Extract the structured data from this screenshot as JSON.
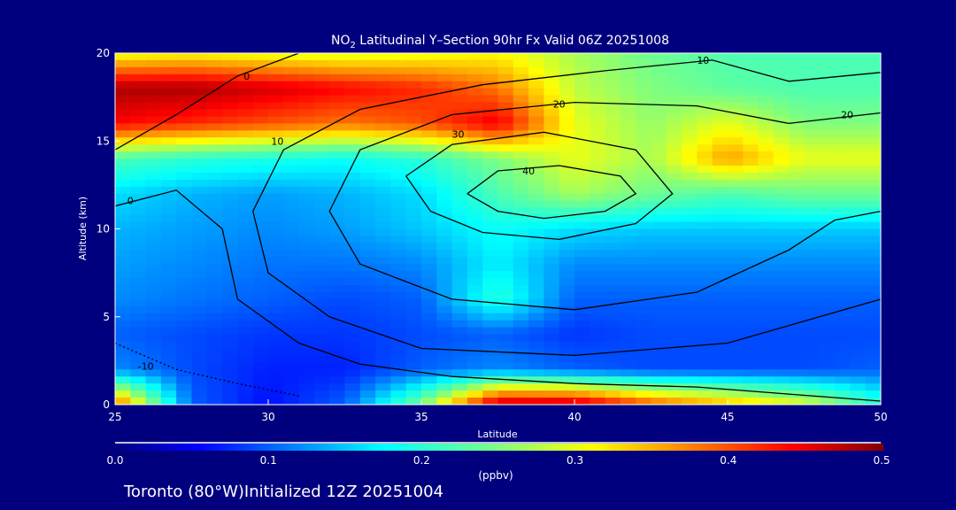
{
  "chart_data": {
    "type": "heatmap",
    "title_main": "NO",
    "title_sub": "2",
    "title_rest": " Latitudinal Y–Section 90hr  Fx Valid 06Z 20251008",
    "xlabel": "Latitude",
    "ylabel": "Altitude (km)",
    "xlim": [
      25,
      50
    ],
    "ylim": [
      0,
      20
    ],
    "xticks": [
      "25",
      "30",
      "35",
      "40",
      "45",
      "50"
    ],
    "yticks": [
      "0",
      "5",
      "10",
      "15",
      "20"
    ],
    "grid_lat": [
      25,
      27.5,
      30,
      32.5,
      35,
      37.5,
      40,
      42.5,
      45,
      47.5,
      50
    ],
    "grid_alt": [
      20,
      18,
      16,
      14,
      12,
      10,
      8,
      6,
      4,
      2,
      0
    ],
    "values": [
      [
        0.3,
        0.31,
        0.3,
        0.29,
        0.3,
        0.31,
        0.27,
        0.24,
        0.22,
        0.22,
        0.22
      ],
      [
        0.48,
        0.48,
        0.46,
        0.44,
        0.42,
        0.38,
        0.28,
        0.25,
        0.23,
        0.22,
        0.22
      ],
      [
        0.44,
        0.42,
        0.4,
        0.38,
        0.4,
        0.45,
        0.3,
        0.26,
        0.3,
        0.25,
        0.25
      ],
      [
        0.22,
        0.2,
        0.19,
        0.18,
        0.2,
        0.25,
        0.3,
        0.27,
        0.36,
        0.3,
        0.3
      ],
      [
        0.16,
        0.14,
        0.13,
        0.14,
        0.16,
        0.22,
        0.27,
        0.24,
        0.22,
        0.24,
        0.24
      ],
      [
        0.14,
        0.13,
        0.12,
        0.13,
        0.15,
        0.18,
        0.16,
        0.15,
        0.15,
        0.15,
        0.15
      ],
      [
        0.13,
        0.12,
        0.11,
        0.11,
        0.12,
        0.17,
        0.12,
        0.12,
        0.12,
        0.12,
        0.12
      ],
      [
        0.12,
        0.11,
        0.1,
        0.09,
        0.1,
        0.2,
        0.1,
        0.1,
        0.1,
        0.1,
        0.1
      ],
      [
        0.1,
        0.09,
        0.08,
        0.08,
        0.09,
        0.1,
        0.08,
        0.09,
        0.09,
        0.09,
        0.09
      ],
      [
        0.12,
        0.09,
        0.07,
        0.07,
        0.1,
        0.12,
        0.1,
        0.09,
        0.09,
        0.09,
        0.1
      ],
      [
        0.4,
        0.1,
        0.06,
        0.1,
        0.25,
        0.48,
        0.48,
        0.4,
        0.35,
        0.3,
        0.2
      ]
    ],
    "contours": [
      {
        "level": "40",
        "label_at": [
          38.5,
          13.3
        ],
        "points": [
          [
            36.5,
            12
          ],
          [
            37.5,
            13.3
          ],
          [
            39.5,
            13.6
          ],
          [
            41.5,
            13
          ],
          [
            42,
            12
          ],
          [
            41,
            11
          ],
          [
            39,
            10.6
          ],
          [
            37.5,
            11
          ],
          [
            36.5,
            12
          ]
        ]
      },
      {
        "level": "30",
        "label_at": [
          36.2,
          15.4
        ],
        "points": [
          [
            34.5,
            13
          ],
          [
            36,
            14.8
          ],
          [
            39,
            15.5
          ],
          [
            42,
            14.5
          ],
          [
            43.2,
            12
          ],
          [
            42,
            10.3
          ],
          [
            39.5,
            9.4
          ],
          [
            37,
            9.8
          ],
          [
            35.3,
            11
          ],
          [
            34.5,
            13
          ]
        ]
      },
      {
        "level": "20",
        "label_at": [
          39.5,
          17.1
        ],
        "points": [
          [
            50,
            16.6
          ],
          [
            47,
            16
          ],
          [
            44,
            17
          ],
          [
            40,
            17.2
          ],
          [
            36,
            16.5
          ],
          [
            33,
            14.5
          ],
          [
            32,
            11
          ],
          [
            33,
            8
          ],
          [
            36,
            6
          ],
          [
            40,
            5.4
          ],
          [
            44,
            6.4
          ],
          [
            47,
            8.8
          ],
          [
            48.5,
            10.5
          ],
          [
            50,
            11
          ]
        ]
      },
      {
        "level": "20",
        "label_at": [
          48.9,
          16.5
        ],
        "points": []
      },
      {
        "level": "10",
        "label_at": [
          30.3,
          15
        ],
        "points": [
          [
            50,
            18.9
          ],
          [
            47,
            18.4
          ],
          [
            44.5,
            19.6
          ],
          [
            41,
            19
          ],
          [
            37,
            18.2
          ],
          [
            33,
            16.8
          ],
          [
            30.5,
            14.5
          ],
          [
            29.5,
            11
          ],
          [
            30,
            7.5
          ],
          [
            32,
            5
          ],
          [
            35,
            3.2
          ],
          [
            40,
            2.8
          ],
          [
            45,
            3.5
          ],
          [
            48,
            5
          ],
          [
            50,
            6
          ]
        ]
      },
      {
        "level": "10",
        "label_at": [
          44.2,
          19.6
        ],
        "points": []
      },
      {
        "level": "0",
        "label_at": [
          25.5,
          11.6
        ],
        "points": [
          [
            25,
            11.3
          ],
          [
            27,
            12.2
          ],
          [
            28.5,
            10
          ],
          [
            29,
            6
          ],
          [
            31,
            3.5
          ],
          [
            33,
            2.3
          ],
          [
            36,
            1.6
          ],
          [
            40,
            1.2
          ],
          [
            44,
            1
          ],
          [
            47,
            0.6
          ],
          [
            50,
            0.2
          ]
        ]
      },
      {
        "level": "0",
        "label_at": [
          29.3,
          18.7
        ],
        "points": [
          [
            25,
            14.5
          ],
          [
            27,
            16.5
          ],
          [
            29,
            18.7
          ],
          [
            31,
            20
          ]
        ]
      },
      {
        "level": "-10",
        "label_at": [
          26,
          2.2
        ],
        "points": [
          [
            25,
            3.5
          ],
          [
            27,
            2
          ],
          [
            29,
            1.2
          ],
          [
            31,
            0.5
          ]
        ]
      }
    ],
    "colorbar": {
      "ticks": [
        "0.0",
        "0.1",
        "0.2",
        "0.3",
        "0.4",
        "0.5"
      ],
      "range": [
        0,
        0.5
      ],
      "unit": "(ppbv)"
    },
    "footer": "Toronto (80°W)Initialized 12Z 20251004"
  }
}
